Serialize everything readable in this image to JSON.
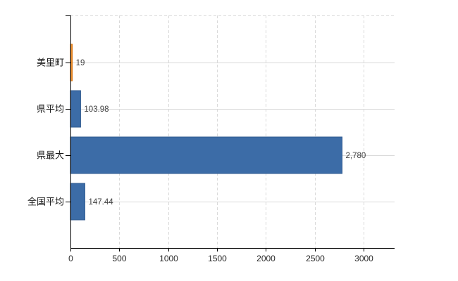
{
  "chart_data": {
    "type": "bar",
    "orientation": "horizontal",
    "title": "",
    "xlabel": "",
    "ylabel": "",
    "categories": [
      "美里町",
      "県平均",
      "県最大",
      "全国平均"
    ],
    "values": [
      19,
      103.98,
      2780,
      147.44
    ],
    "value_labels": [
      "19",
      "103.98",
      "2,780",
      "147.44"
    ],
    "x_ticks": [
      0,
      500,
      1000,
      1500,
      2000,
      2500,
      3000
    ],
    "x_tick_labels": [
      "0",
      "500",
      "1000",
      "1500",
      "2000",
      "2500",
      "3000"
    ],
    "xlim": [
      0,
      3318
    ],
    "grid": {
      "vertical": "dashed",
      "horizontal": "solid-row-lines",
      "top_border": "dashed"
    },
    "legend": "none",
    "bar_styles": [
      {
        "fill": "#F0912D",
        "stroke": "#DA7715"
      },
      {
        "fill": "#3C6CA7",
        "stroke": "#2F5A8F"
      },
      {
        "fill": "#3C6CA7",
        "stroke": "#2F5A8F"
      },
      {
        "fill": "#3C6CA7",
        "stroke": "#2F5A8F"
      }
    ]
  },
  "colors": {
    "background": "#FFFFFF",
    "axis": "#000000",
    "gridline": "#D9D9D9",
    "category_text": "#1A1A1A",
    "value_text": "#404040",
    "tick_text": "#262626"
  }
}
